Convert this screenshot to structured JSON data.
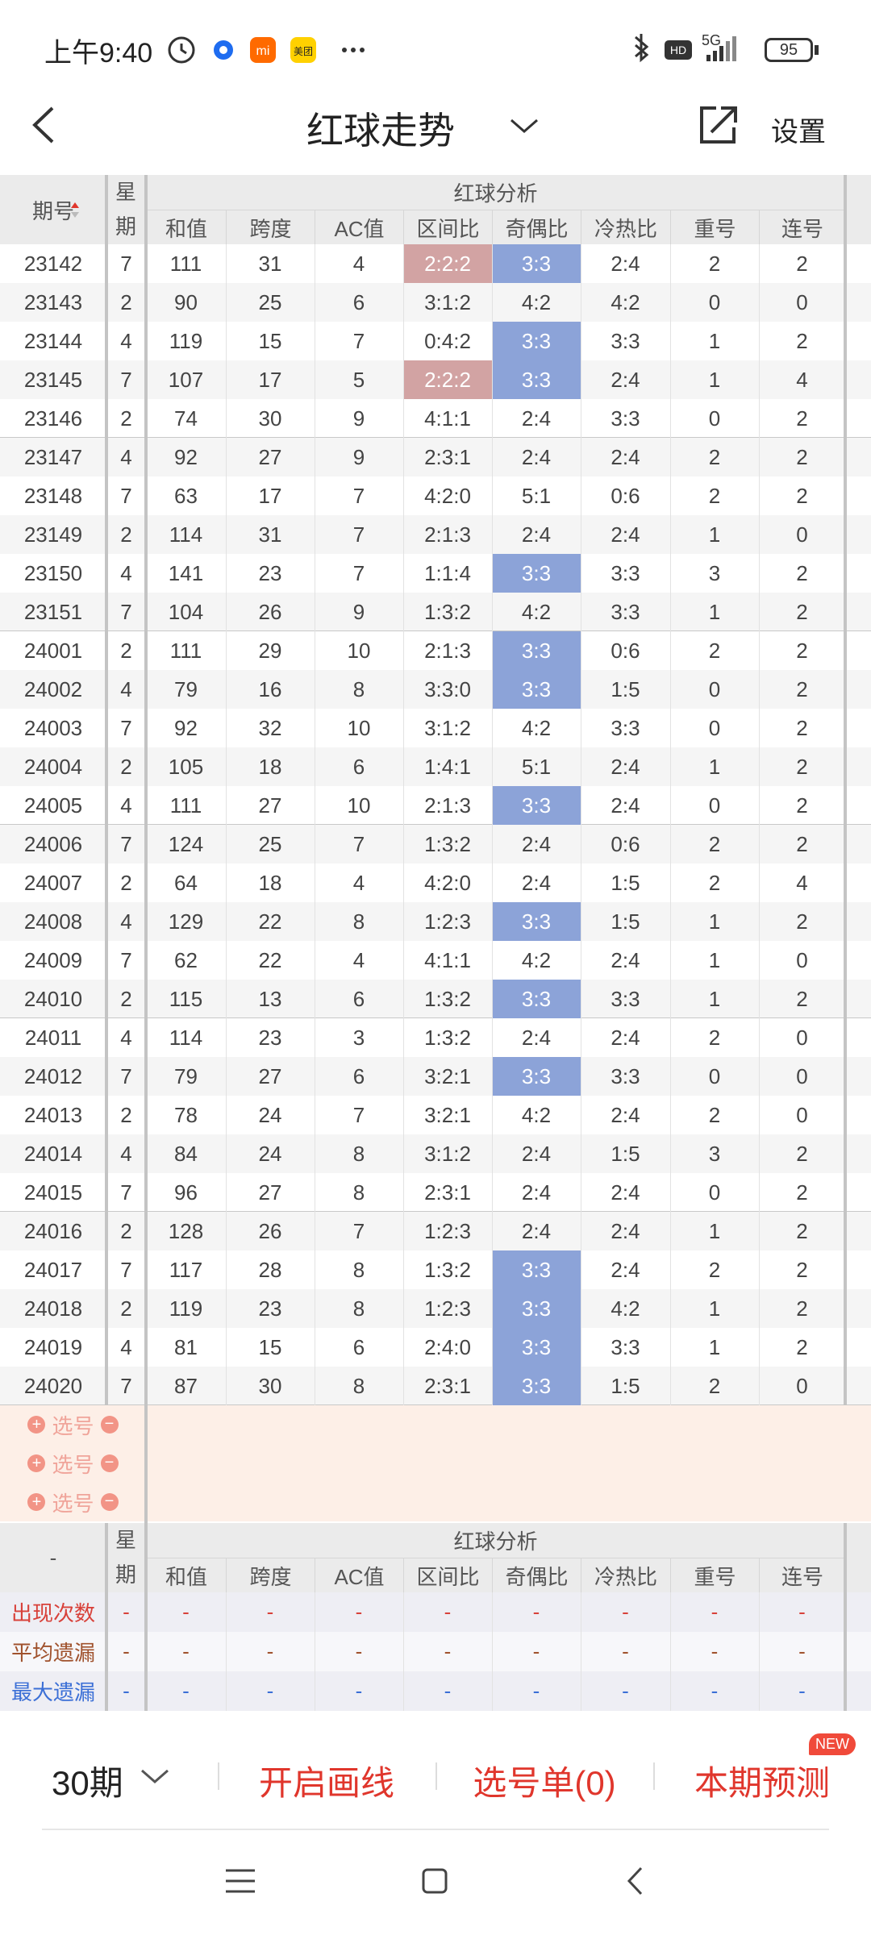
{
  "status_bar": {
    "time": "上午9:40",
    "network": "5G",
    "battery": "95"
  },
  "header": {
    "title": "红球走势",
    "settings": "设置"
  },
  "table": {
    "issue_header": "期号",
    "weekday_header": "星期",
    "group_header": "红球分析",
    "columns": [
      "和值",
      "跨度",
      "AC值",
      "区间比",
      "奇偶比",
      "冷热比",
      "重号",
      "连号"
    ],
    "rows": [
      [
        "23142",
        7,
        111,
        31,
        4,
        "2:2:2",
        "3:3",
        "2:4",
        2,
        2
      ],
      [
        "23143",
        2,
        90,
        25,
        6,
        "3:1:2",
        "4:2",
        "4:2",
        0,
        0
      ],
      [
        "23144",
        4,
        119,
        15,
        7,
        "0:4:2",
        "3:3",
        "3:3",
        1,
        2
      ],
      [
        "23145",
        7,
        107,
        17,
        5,
        "2:2:2",
        "3:3",
        "2:4",
        1,
        4
      ],
      [
        "23146",
        2,
        74,
        30,
        9,
        "4:1:1",
        "2:4",
        "3:3",
        0,
        2
      ],
      [
        "23147",
        4,
        92,
        27,
        9,
        "2:3:1",
        "2:4",
        "2:4",
        2,
        2
      ],
      [
        "23148",
        7,
        63,
        17,
        7,
        "4:2:0",
        "5:1",
        "0:6",
        2,
        2
      ],
      [
        "23149",
        2,
        114,
        31,
        7,
        "2:1:3",
        "2:4",
        "2:4",
        1,
        0
      ],
      [
        "23150",
        4,
        141,
        23,
        7,
        "1:1:4",
        "3:3",
        "3:3",
        3,
        2
      ],
      [
        "23151",
        7,
        104,
        26,
        9,
        "1:3:2",
        "4:2",
        "3:3",
        1,
        2
      ],
      [
        "24001",
        2,
        111,
        29,
        10,
        "2:1:3",
        "3:3",
        "0:6",
        2,
        2
      ],
      [
        "24002",
        4,
        79,
        16,
        8,
        "3:3:0",
        "3:3",
        "1:5",
        0,
        2
      ],
      [
        "24003",
        7,
        92,
        32,
        10,
        "3:1:2",
        "4:2",
        "3:3",
        0,
        2
      ],
      [
        "24004",
        2,
        105,
        18,
        6,
        "1:4:1",
        "5:1",
        "2:4",
        1,
        2
      ],
      [
        "24005",
        4,
        111,
        27,
        10,
        "2:1:3",
        "3:3",
        "2:4",
        0,
        2
      ],
      [
        "24006",
        7,
        124,
        25,
        7,
        "1:3:2",
        "2:4",
        "0:6",
        2,
        2
      ],
      [
        "24007",
        2,
        64,
        18,
        4,
        "4:2:0",
        "2:4",
        "1:5",
        2,
        4
      ],
      [
        "24008",
        4,
        129,
        22,
        8,
        "1:2:3",
        "3:3",
        "1:5",
        1,
        2
      ],
      [
        "24009",
        7,
        62,
        22,
        4,
        "4:1:1",
        "4:2",
        "2:4",
        1,
        0
      ],
      [
        "24010",
        2,
        115,
        13,
        6,
        "1:3:2",
        "3:3",
        "3:3",
        1,
        2
      ],
      [
        "24011",
        4,
        114,
        23,
        3,
        "1:3:2",
        "2:4",
        "2:4",
        2,
        0
      ],
      [
        "24012",
        7,
        79,
        27,
        6,
        "3:2:1",
        "3:3",
        "3:3",
        0,
        0
      ],
      [
        "24013",
        2,
        78,
        24,
        7,
        "3:2:1",
        "4:2",
        "2:4",
        2,
        0
      ],
      [
        "24014",
        4,
        84,
        24,
        8,
        "3:1:2",
        "2:4",
        "1:5",
        3,
        2
      ],
      [
        "24015",
        7,
        96,
        27,
        8,
        "2:3:1",
        "2:4",
        "2:4",
        0,
        2
      ],
      [
        "24016",
        2,
        128,
        26,
        7,
        "1:2:3",
        "2:4",
        "2:4",
        1,
        2
      ],
      [
        "24017",
        7,
        117,
        28,
        8,
        "1:3:2",
        "3:3",
        "2:4",
        2,
        2
      ],
      [
        "24018",
        2,
        119,
        23,
        8,
        "1:2:3",
        "3:3",
        "4:2",
        1,
        2
      ],
      [
        "24019",
        4,
        81,
        15,
        6,
        "2:4:0",
        "3:3",
        "3:3",
        1,
        2
      ],
      [
        "24020",
        7,
        87,
        30,
        8,
        "2:3:1",
        "3:3",
        "1:5",
        2,
        0
      ]
    ],
    "highlight": [
      {
        "column": 5,
        "color": "#d2a3a3",
        "rows": [
          0,
          3
        ]
      },
      {
        "column": 6,
        "color": "#8ca3d8",
        "rows": [
          0,
          2,
          3,
          8,
          10,
          11,
          14,
          17,
          19,
          21,
          26,
          27,
          28,
          29
        ]
      }
    ],
    "pick_rows": [
      "选号",
      "选号",
      "选号"
    ]
  },
  "stats": {
    "issue_header": "-",
    "weekday_header": "星期",
    "group_header": "红球分析",
    "columns": [
      "和值",
      "跨度",
      "AC值",
      "区间比",
      "奇偶比",
      "冷热比",
      "重号",
      "连号"
    ],
    "rows": [
      {
        "label": "出现次数",
        "color": "#d8413a",
        "values": [
          "-",
          "-",
          "-",
          "-",
          "-",
          "-",
          "-",
          "-",
          "-"
        ]
      },
      {
        "label": "平均遗漏",
        "color": "#a0522d",
        "values": [
          "-",
          "-",
          "-",
          "-",
          "-",
          "-",
          "-",
          "-",
          "-"
        ]
      },
      {
        "label": "最大遗漏",
        "color": "#3b6fd6",
        "values": [
          "-",
          "-",
          "-",
          "-",
          "-",
          "-",
          "-",
          "-",
          "-"
        ]
      }
    ]
  },
  "bottom_bar": {
    "period": "30期",
    "draw_line": "开启画线",
    "selection": "选号单(0)",
    "predict": "本期预测",
    "badge": "NEW"
  }
}
